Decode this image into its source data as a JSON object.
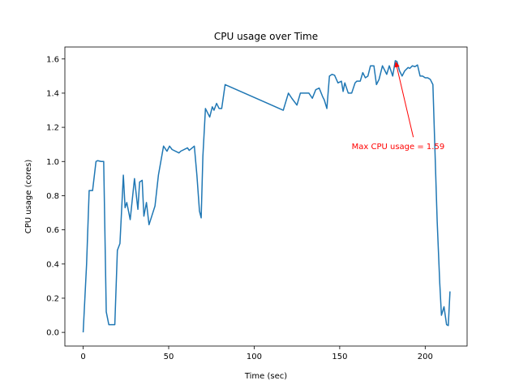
{
  "chart_data": {
    "type": "line",
    "title": "CPU usage over Time",
    "xlabel": "Time (sec)",
    "ylabel": "CPU usage (cores)",
    "xlim": [
      -10.7,
      224.5
    ],
    "ylim": [
      -0.08,
      1.67
    ],
    "xticks": [
      0,
      50,
      100,
      150,
      200
    ],
    "xtick_labels": [
      "0",
      "50",
      "100",
      "150",
      "200"
    ],
    "yticks": [
      0.0,
      0.2,
      0.4,
      0.6,
      0.8,
      1.0,
      1.2,
      1.4,
      1.6
    ],
    "ytick_labels": [
      "0.0",
      "0.2",
      "0.4",
      "0.6",
      "0.8",
      "1.0",
      "1.2",
      "1.4",
      "1.6"
    ],
    "grid": false,
    "line_color": "#1f77b4",
    "annotation": {
      "text": "Max CPU usage = 1.59",
      "color": "#ff0000",
      "point": [
        182.5,
        1.59
      ],
      "text_pos": [
        157,
        1.09
      ]
    },
    "series": [
      {
        "values": [
          [
            0,
            0.0
          ],
          [
            2,
            0.4
          ],
          [
            3.5,
            0.83
          ],
          [
            5.5,
            0.83
          ],
          [
            7.5,
            1.0
          ],
          [
            8.5,
            1.005
          ],
          [
            10.5,
            1.0
          ],
          [
            12,
            1.0
          ],
          [
            13.5,
            0.12
          ],
          [
            15,
            0.045
          ],
          [
            17,
            0.045
          ],
          [
            18.5,
            0.045
          ],
          [
            20,
            0.48
          ],
          [
            21.5,
            0.52
          ],
          [
            23.5,
            0.92
          ],
          [
            24.5,
            0.73
          ],
          [
            25.5,
            0.76
          ],
          [
            27.5,
            0.66
          ],
          [
            30,
            0.9
          ],
          [
            32,
            0.72
          ],
          [
            33,
            0.88
          ],
          [
            34.5,
            0.89
          ],
          [
            35.5,
            0.68
          ],
          [
            37,
            0.76
          ],
          [
            38.5,
            0.63
          ],
          [
            42,
            0.74
          ],
          [
            44,
            0.92
          ],
          [
            47,
            1.09
          ],
          [
            49,
            1.06
          ],
          [
            50.5,
            1.09
          ],
          [
            52,
            1.07
          ],
          [
            56,
            1.05
          ],
          [
            57,
            1.06
          ],
          [
            61,
            1.08
          ],
          [
            62,
            1.065
          ],
          [
            65,
            1.09
          ],
          [
            66.5,
            0.92
          ],
          [
            68,
            0.71
          ],
          [
            69,
            0.67
          ],
          [
            70,
            1.03
          ],
          [
            71.5,
            1.31
          ],
          [
            74,
            1.26
          ],
          [
            75.5,
            1.32
          ],
          [
            76.5,
            1.3
          ],
          [
            78,
            1.34
          ],
          [
            79.5,
            1.31
          ],
          [
            81,
            1.31
          ],
          [
            83,
            1.45
          ],
          [
            117,
            1.3
          ],
          [
            120,
            1.4
          ],
          [
            122,
            1.37
          ],
          [
            125,
            1.33
          ],
          [
            127,
            1.4
          ],
          [
            130,
            1.4
          ],
          [
            132,
            1.4
          ],
          [
            134,
            1.37
          ],
          [
            136,
            1.42
          ],
          [
            138,
            1.43
          ],
          [
            140,
            1.38
          ],
          [
            141,
            1.36
          ],
          [
            142.5,
            1.31
          ],
          [
            144,
            1.5
          ],
          [
            145.5,
            1.51
          ],
          [
            147,
            1.505
          ],
          [
            149,
            1.46
          ],
          [
            151,
            1.47
          ],
          [
            152,
            1.41
          ],
          [
            153,
            1.46
          ],
          [
            155,
            1.4
          ],
          [
            157,
            1.4
          ],
          [
            159,
            1.46
          ],
          [
            160,
            1.47
          ],
          [
            162,
            1.47
          ],
          [
            163.5,
            1.52
          ],
          [
            165,
            1.49
          ],
          [
            166.5,
            1.5
          ],
          [
            168,
            1.56
          ],
          [
            170,
            1.56
          ],
          [
            171.5,
            1.45
          ],
          [
            173,
            1.48
          ],
          [
            175,
            1.56
          ],
          [
            176.5,
            1.53
          ],
          [
            177.5,
            1.51
          ],
          [
            179,
            1.56
          ],
          [
            181,
            1.5
          ],
          [
            182.5,
            1.59
          ],
          [
            183.5,
            1.585
          ],
          [
            185,
            1.53
          ],
          [
            186.5,
            1.5
          ],
          [
            188,
            1.53
          ],
          [
            190,
            1.55
          ],
          [
            191,
            1.545
          ],
          [
            192.5,
            1.56
          ],
          [
            194,
            1.555
          ],
          [
            195.5,
            1.565
          ],
          [
            197,
            1.5
          ],
          [
            198.5,
            1.5
          ],
          [
            200,
            1.49
          ],
          [
            201.5,
            1.49
          ],
          [
            203,
            1.48
          ],
          [
            204.5,
            1.45
          ],
          [
            207,
            0.65
          ],
          [
            208.5,
            0.29
          ],
          [
            209.5,
            0.1
          ],
          [
            211,
            0.15
          ],
          [
            212.5,
            0.045
          ],
          [
            213.5,
            0.04
          ],
          [
            214.5,
            0.24
          ]
        ]
      }
    ]
  }
}
